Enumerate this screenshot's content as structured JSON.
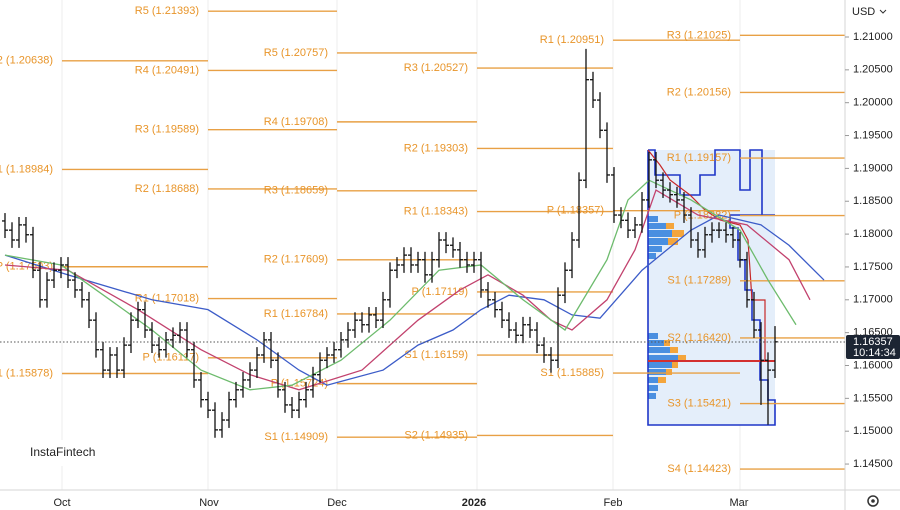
{
  "chart_data": {
    "type": "ohlc",
    "currency": "USD",
    "brand": "InstaFintech",
    "last_price": 1.16357,
    "countdown": "10:14:34",
    "ylim": [
      1.14105,
      1.21563
    ],
    "yticks": [
      {
        "value": 1.21,
        "label": "1.21000"
      },
      {
        "value": 1.205,
        "label": "1.20500"
      },
      {
        "value": 1.2,
        "label": "1.20000"
      },
      {
        "value": 1.195,
        "label": "1.19500"
      },
      {
        "value": 1.19,
        "label": "1.19000"
      },
      {
        "value": 1.185,
        "label": "1.18500"
      },
      {
        "value": 1.18,
        "label": "1.18000"
      },
      {
        "value": 1.175,
        "label": "1.17500"
      },
      {
        "value": 1.17,
        "label": "1.17000"
      },
      {
        "value": 1.165,
        "label": "1.16500"
      },
      {
        "value": 1.16,
        "label": "1.16000"
      },
      {
        "value": 1.155,
        "label": "1.15500"
      },
      {
        "value": 1.15,
        "label": "1.15000"
      },
      {
        "value": 1.145,
        "label": "1.14500"
      }
    ],
    "x_labels": [
      "Oct",
      "Nov",
      "Dec",
      "2026",
      "Feb",
      "Mar"
    ],
    "ohlc": {
      "open": [
        1.182,
        1.1806,
        1.1791,
        1.1814,
        1.1799,
        1.1745,
        1.17,
        1.173,
        1.1745,
        1.1753,
        1.173,
        1.1715,
        1.17,
        1.1669,
        1.1624,
        1.1593,
        1.1616,
        1.1593,
        1.1631,
        1.1669,
        1.1685,
        1.1654,
        1.1631,
        1.1624,
        1.1639,
        1.1646,
        1.1654,
        1.1624,
        1.1578,
        1.1548,
        1.1532,
        1.1502,
        1.1517,
        1.1548,
        1.1563,
        1.1578,
        1.1593,
        1.1616,
        1.1639,
        1.1608,
        1.1563,
        1.154,
        1.1532,
        1.1548,
        1.1563,
        1.1586,
        1.1608,
        1.1616,
        1.1624,
        1.1639,
        1.1654,
        1.1669,
        1.1662,
        1.1677,
        1.1669,
        1.17,
        1.1745,
        1.1753,
        1.1768,
        1.1753,
        1.1761,
        1.1738,
        1.1761,
        1.1791,
        1.1783,
        1.1776,
        1.1761,
        1.1753,
        1.1761,
        1.1715,
        1.17,
        1.1685,
        1.1669,
        1.1654,
        1.1646,
        1.1662,
        1.1654,
        1.1631,
        1.1616,
        1.1608,
        1.1707,
        1.1745,
        1.1791,
        1.1882,
        1.2035,
        1.2004,
        1.1958,
        1.189,
        1.1829,
        1.1821,
        1.1806,
        1.1814,
        1.1852,
        1.1913,
        1.1882,
        1.1867,
        1.186,
        1.1852,
        1.1829,
        1.1791,
        1.1776,
        1.1799,
        1.1806,
        1.1806,
        1.1799,
        1.1791,
        1.1761,
        1.17,
        1.1654,
        1.1608,
        1.1593
      ],
      "high": [
        1.1832,
        1.1818,
        1.1826,
        1.1826,
        1.1811,
        1.1757,
        1.1742,
        1.1757,
        1.1765,
        1.1765,
        1.1742,
        1.1727,
        1.1712,
        1.1681,
        1.1636,
        1.1628,
        1.1628,
        1.1643,
        1.1681,
        1.1697,
        1.1697,
        1.1666,
        1.1643,
        1.1651,
        1.1658,
        1.1666,
        1.1666,
        1.1636,
        1.159,
        1.156,
        1.1544,
        1.1529,
        1.156,
        1.1575,
        1.159,
        1.1605,
        1.1628,
        1.1651,
        1.1651,
        1.162,
        1.1575,
        1.1552,
        1.156,
        1.1575,
        1.1598,
        1.162,
        1.1628,
        1.1636,
        1.1651,
        1.1666,
        1.1681,
        1.1681,
        1.1689,
        1.1689,
        1.1712,
        1.1757,
        1.1765,
        1.178,
        1.178,
        1.1773,
        1.1773,
        1.1773,
        1.1803,
        1.1803,
        1.1795,
        1.1788,
        1.1773,
        1.1773,
        1.1773,
        1.1727,
        1.1712,
        1.1697,
        1.1681,
        1.1666,
        1.1674,
        1.1674,
        1.1666,
        1.1643,
        1.1628,
        1.1719,
        1.1757,
        1.1803,
        1.1894,
        1.2082,
        1.2047,
        1.2016,
        1.197,
        1.1902,
        1.1841,
        1.1833,
        1.1826,
        1.1864,
        1.1925,
        1.1925,
        1.1894,
        1.1879,
        1.1872,
        1.1864,
        1.1841,
        1.1803,
        1.1811,
        1.1818,
        1.1818,
        1.1818,
        1.1811,
        1.1803,
        1.1773,
        1.1712,
        1.1666,
        1.162,
        1.166
      ],
      "low": [
        1.1794,
        1.1779,
        1.1779,
        1.1787,
        1.1733,
        1.1688,
        1.1688,
        1.1718,
        1.1733,
        1.1718,
        1.1703,
        1.1688,
        1.1657,
        1.1612,
        1.1581,
        1.1581,
        1.1581,
        1.1581,
        1.1619,
        1.1657,
        1.1642,
        1.1619,
        1.1612,
        1.1612,
        1.1627,
        1.1634,
        1.1612,
        1.1566,
        1.1536,
        1.152,
        1.149,
        1.149,
        1.1505,
        1.1536,
        1.1551,
        1.1566,
        1.1581,
        1.1604,
        1.1596,
        1.1551,
        1.1528,
        1.152,
        1.152,
        1.1536,
        1.1551,
        1.1574,
        1.1596,
        1.1604,
        1.1612,
        1.1627,
        1.1642,
        1.165,
        1.165,
        1.1657,
        1.1657,
        1.1688,
        1.1733,
        1.1741,
        1.1741,
        1.1741,
        1.1726,
        1.1726,
        1.1749,
        1.1771,
        1.1764,
        1.1749,
        1.1741,
        1.1741,
        1.1703,
        1.1688,
        1.1673,
        1.1657,
        1.1642,
        1.1634,
        1.1634,
        1.1642,
        1.1619,
        1.1604,
        1.1589,
        1.1596,
        1.1695,
        1.1733,
        1.1779,
        1.187,
        1.1992,
        1.1946,
        1.1878,
        1.1817,
        1.1809,
        1.1794,
        1.1794,
        1.1802,
        1.184,
        1.187,
        1.1855,
        1.1848,
        1.184,
        1.1817,
        1.1779,
        1.1764,
        1.1764,
        1.1787,
        1.1794,
        1.1787,
        1.1779,
        1.1749,
        1.1688,
        1.1642,
        1.154,
        1.151,
        1.1581
      ],
      "close": [
        1.1806,
        1.1791,
        1.1814,
        1.1799,
        1.1745,
        1.17,
        1.173,
        1.1745,
        1.1753,
        1.173,
        1.1715,
        1.17,
        1.1669,
        1.1624,
        1.1593,
        1.1616,
        1.1593,
        1.1631,
        1.1669,
        1.1685,
        1.1654,
        1.1631,
        1.1624,
        1.1639,
        1.1646,
        1.1654,
        1.1624,
        1.1578,
        1.1548,
        1.1532,
        1.1502,
        1.1517,
        1.1548,
        1.1563,
        1.1578,
        1.1593,
        1.1616,
        1.1639,
        1.1608,
        1.1563,
        1.154,
        1.1532,
        1.1548,
        1.1563,
        1.1586,
        1.1608,
        1.1616,
        1.1624,
        1.1639,
        1.1654,
        1.1669,
        1.1662,
        1.1677,
        1.1669,
        1.17,
        1.1745,
        1.1753,
        1.1768,
        1.1753,
        1.1761,
        1.1738,
        1.1761,
        1.1791,
        1.1783,
        1.1776,
        1.1761,
        1.1753,
        1.1761,
        1.1715,
        1.17,
        1.1685,
        1.1669,
        1.1654,
        1.1646,
        1.1662,
        1.1654,
        1.1631,
        1.1616,
        1.1608,
        1.1707,
        1.1745,
        1.1791,
        1.1882,
        1.2035,
        1.2004,
        1.1958,
        1.189,
        1.1829,
        1.1821,
        1.1806,
        1.1814,
        1.1852,
        1.1913,
        1.1882,
        1.1867,
        1.186,
        1.1852,
        1.1829,
        1.1791,
        1.1776,
        1.1799,
        1.1806,
        1.1806,
        1.1799,
        1.1791,
        1.1761,
        1.17,
        1.1654,
        1.1608,
        1.1593,
        1.1636
      ]
    },
    "moving_averages": [
      {
        "color": "#3c5cc8",
        "x": [
          0,
          9,
          21,
          29,
          36,
          42,
          46,
          54,
          59,
          64,
          68,
          72,
          77,
          81,
          85,
          91,
          98,
          102,
          108,
          112,
          117
        ],
        "values": [
          1.1768,
          1.1738,
          1.17,
          1.1685,
          1.1639,
          1.1593,
          1.157,
          1.1593,
          1.1631,
          1.1654,
          1.1685,
          1.1707,
          1.17,
          1.1677,
          1.1672,
          1.1745,
          1.1806,
          1.1829,
          1.1814,
          1.1783,
          1.173
        ]
      },
      {
        "color": "#c2426e",
        "x": [
          0,
          9,
          19,
          28,
          35,
          42,
          51,
          59,
          65,
          69,
          74,
          78,
          81,
          86,
          90,
          93,
          99,
          106,
          112,
          115
        ],
        "values": [
          1.1753,
          1.1745,
          1.1685,
          1.1624,
          1.1586,
          1.1563,
          1.1593,
          1.1669,
          1.1715,
          1.1738,
          1.1707,
          1.1669,
          1.1654,
          1.17,
          1.1776,
          1.1867,
          1.1829,
          1.1814,
          1.1761,
          1.17
        ]
      },
      {
        "color": "#6dbb6d",
        "x": [
          0,
          8,
          15,
          21,
          28,
          35,
          41,
          48,
          55,
          62,
          68,
          74,
          80,
          86,
          89,
          92,
          98,
          105,
          109,
          113
        ],
        "values": [
          1.1768,
          1.1753,
          1.17,
          1.1654,
          1.1593,
          1.1563,
          1.157,
          1.1608,
          1.1669,
          1.1745,
          1.1753,
          1.17,
          1.1654,
          1.1761,
          1.1852,
          1.1882,
          1.1852,
          1.1806,
          1.173,
          1.1662
        ]
      }
    ],
    "pivot_periods": [
      [
        {
          "label": "2 (1.20638)",
          "value": 1.20638
        },
        {
          "label": "1 (1.18984)",
          "value": 1.18984
        },
        {
          "label": "P (1.17503)",
          "value": 1.17503
        },
        {
          "label": "1 (1.15878)",
          "value": 1.15878
        }
      ],
      [
        {
          "label": "R5 (1.21393)",
          "value": 1.21393
        },
        {
          "label": "R4 (1.20491)",
          "value": 1.20491
        },
        {
          "label": "R3 (1.19589)",
          "value": 1.19589
        },
        {
          "label": "R2 (1.18688)",
          "value": 1.18688
        },
        {
          "label": "R1 (1.17018)",
          "value": 1.17018
        },
        {
          "label": "P (1.16117)",
          "value": 1.16117
        }
      ],
      [
        {
          "label": "R5 (1.20757)",
          "value": 1.20757
        },
        {
          "label": "R4 (1.19708)",
          "value": 1.19708
        },
        {
          "label": "R3 (1.18659)",
          "value": 1.18659
        },
        {
          "label": "R2 (1.17609)",
          "value": 1.17609
        },
        {
          "label": "R1 (1.16784)",
          "value": 1.16784
        },
        {
          "label": "P (1.15724)",
          "value": 1.15724
        },
        {
          "label": "S1 (1.14909)",
          "value": 1.14909
        }
      ],
      [
        {
          "label": "R3 (1.20527)",
          "value": 1.20527
        },
        {
          "label": "R2 (1.19303)",
          "value": 1.19303
        },
        {
          "label": "R1 (1.18343)",
          "value": 1.18343
        },
        {
          "label": "P (1.17119)",
          "value": 1.17119
        },
        {
          "label": "S1 (1.16159)",
          "value": 1.16159
        },
        {
          "label": "S2 (1.14935)",
          "value": 1.14935
        }
      ],
      [
        {
          "label": "R1 (1.20951)",
          "value": 1.20951
        },
        {
          "label": "P (1.18357)",
          "value": 1.18357
        },
        {
          "label": "S1 (1.15885)",
          "value": 1.15885
        }
      ],
      [
        {
          "label": "R3 (1.21025)",
          "value": 1.21025
        },
        {
          "label": "R2 (1.20156)",
          "value": 1.20156
        },
        {
          "label": "R1 (1.19157)",
          "value": 1.19157
        },
        {
          "label": "P (1.18282)",
          "value": 1.18282
        },
        {
          "label": "S1 (1.17289)",
          "value": 1.17289
        },
        {
          "label": "S2 (1.16420)",
          "value": 1.1642
        },
        {
          "label": "S3 (1.15421)",
          "value": 1.15421
        },
        {
          "label": "S4 (1.14423)",
          "value": 1.14423
        }
      ]
    ]
  }
}
